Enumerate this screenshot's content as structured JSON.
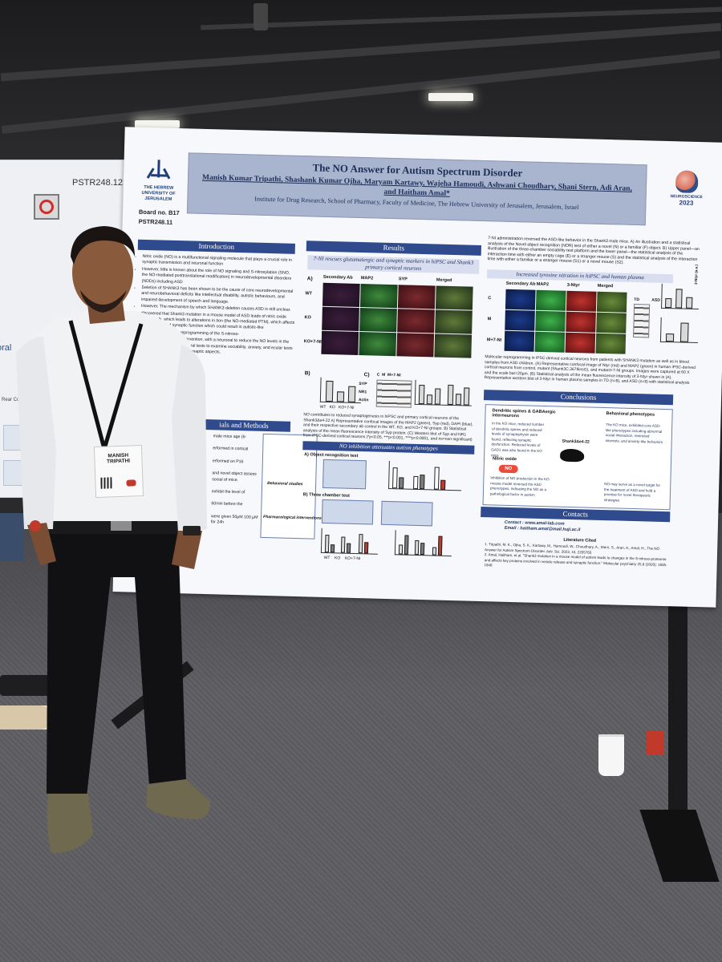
{
  "left_poster": {
    "id": "PSTR248.12",
    "heading_fragment": "oral",
    "subtitle_fragment": "Rear Conditioning: (Contextual Learning and Fear Lea"
  },
  "poster": {
    "title": "The NO Answer for Autism Spectrum Disorder",
    "authors": "Manish Kumar Tripathi, Shashank Kumar Ojha, Maryam Kartawy, Wajeha Hamoudi, Ashwani Choudhary, Shani Stern, Adi Aran, and Haitham Amal*",
    "affiliation": "Institute for Drug Research, School of Pharmacy, Faculty of Medicine, The Hebrew University of Jerusalem, Jerusalem, Israel",
    "university_logo": "THE HEBREW UNIVERSITY OF JERUSALEM",
    "board": "Board no. B17",
    "poster_code": "PSTR248.11",
    "conference_logo": "NEUROSCIENCE",
    "conference_year": "2023",
    "sections": {
      "introduction": "Introduction",
      "results": "Results",
      "materials": "ials and Methods",
      "conclusions": "Conclusions",
      "contacts": "Contacts",
      "literature": "Literature Cited"
    },
    "intro_points": [
      "Nitric oxide (NO) is a multifunctional signaling molecule that plays a crucial role in synaptic transmission and neuronal function",
      "However, little is known about the role of NO signaling and S-nitrosylation (SNO, the NO-mediated posttranslational modification) in neurodevelopmental disorders (NDDs) including ASD",
      "Deletion of SHANK3 has been shown to be the cause of core neurodevelopmental and neurobehavioral deficits like intellectual disability, autistic behaviours, and impaired development of speech and language.",
      "However, The mechanism by which SHANK3 deletion causes ASD is still unclear.",
      "discovered that Shank3 mutation in a mouse model of ASD leads of nitric oxide (NO) levels, which leads to alterations in tion (the NO-mediated PTM), which affects key proteins and synaptic function which could result in autistic-like",
      "nk3 mutation led to a reprogramming of the S-nitroso-",
      "ed a pharmacological intervention, with a neuronal to reduce the NO levels in the brain. This was of behavioural tests to examine sociability, anxiety, and ecular tests to examine molecular and synaptic aspects."
    ],
    "methods_fragments": [
      "male mice age (6-",
      "erformed in cortical",
      "erformed on P16",
      "and novel object assess social of mice.",
      "exhibit the level of",
      "60min before the",
      "were given 50µM 100 µM for 24h"
    ],
    "methods_figure_labels": {
      "behavioral": "Behavioral studies",
      "pharmacological": "Pharmacological interventions"
    },
    "panel_a": {
      "heading": "7-NI rescues glutamatergic and synaptic markers in hiPSC and Shank3 primary cortical neurons",
      "label": "A)",
      "columns": [
        "Secondary Ab",
        "MAP2",
        "SYP",
        "Merged"
      ],
      "rows": [
        "WT",
        "KO",
        "KO+7-NI"
      ],
      "b_label": "B)",
      "c_label": "C)",
      "blot_columns": [
        "C",
        "M",
        "M+7-NI"
      ],
      "blot_rows": [
        "SYP",
        "NR1",
        "Actin"
      ],
      "bar_axis_labels": [
        "WT",
        "KO",
        "KO+7-NI"
      ],
      "caption": "NO contributes to reduced synaptogenesis in hiPSC and primary cortical neurons of the Shank3Δe4-22 A) Representative confocal images of the MAP2 (green), Syp (red), DAPI (blue), and their respective secondary ab control in the WT, KO, and KO+7-NI groups. B) Statistical analysis of the mean fluorescence intensity of Syp protein. (C) Western blot of Syp and NR1 from iPSC-derived cortical neurons (*p<0.05, ***p<0.001, ****p<0.0001, and ns=non-significant)"
    },
    "panel_b": {
      "heading": "NO inhibition attenuates autism phenotypes",
      "a_label": "A) Object recognition test",
      "b_label": "B) Three chamber test",
      "group_labels": [
        "WT",
        "KO",
        "KO+7-NI"
      ]
    },
    "panel_c": {
      "text": "7-NI administration reversed the ASD-like behavior in the Shank3 male mice. A) An illustration and a statistical analysis of the Novel object recognition (NOR) test of either a novel (N) or a familiar (F) object. B) Upper panel—an illustration of the three-chamber sociability test platform and the lower panel—the statistical analysis of the interaction time with either an empty cage (E) or a stranger mouse (S) and the statistical analysis of the interaction time with either a familiar or a stranger mouse (S1) or a novel mouse (S2).",
      "heading": "Increased tyrosine nitration in hiPSC and human plasma",
      "columns": [
        "Secondary Ab",
        "MAP2",
        "3-Ntyr",
        "Merged"
      ],
      "rows": [
        "C",
        "M",
        "M+7-NI"
      ],
      "side_labels": [
        "TD",
        "ASD",
        "3-Ntyr (a.u.)"
      ],
      "caption": "Molecular reprogramming in iPSC-derived cortical neurons from patients with SHANK3 mutation as well as in blood samples from ASD children. (A) Representative confocal image of Ntyr (red) and MAP2 (green) in human iPSC-derived cortical neurons from control, mutant (Shank3C.3679insG), and mutant+7-NI groups. Images were captured at 60 X and the scale bar=20µm. (B) Statistical analysis of the mean fluorescence intensity of 3-Ntyr shown in (A). Representative western blot of 3-Ntyr in human plasma samples in TD (n=8), and ASD (n=8) with statistical analysis"
    },
    "conclusions": {
      "dendritic_title": "Dendritic spines & GABAergic interneurons",
      "dendritic_text": "In the KO mice, reduced number of dendritic spines and reduced levels of synaptophysin were found, reflecting synaptic dysfunction. Reduced levels of GAD1 was also found in the KO mice",
      "behavioral_title": "Behavioral phenotypes",
      "behavioral_text": "The KO mice, exhibited core ASD- like phenotypes including abnormal social interaction, restricted interests, and anxiety-like behaviors",
      "center_label": "Shank3Δe4-22",
      "nitric_title": "Nitric oxide",
      "no_badge": "NO",
      "nitric_text": "Inhibition of NO production in the KO mouse model reversed the ASD phenotypes, indicating the NO  as a pathological factor in autism",
      "target_text": "NO may serve as a novel target for the treatment of ASD and hold a promise for novel therapeutic strategies"
    },
    "contacts": {
      "contact": "Contact : www.amal-lab.com",
      "email": "Email : haitham.amal@mail.huji.ac.il"
    },
    "literature": [
      "1. Tripathi, M. K., Ojha, S. K., Kartawy, M., Hamoudi, W., Choudhary, A., Stern, S., Aran, A., Amal, H., The NO Answer for Autism Spectrum Disorder. Adv. Sci. 2023, 10, 2205783",
      "2. Amal, Haitham, et al. \"Shank3 mutation in a mouse model of autism leads to changes in the S-nitroso-proteome and affects key proteins involved in vesicle release and synaptic function.\" Molecular psychiatry 25.8 (2020): 1835-1848"
    ]
  },
  "badge": {
    "first_name": "MANISH",
    "last_name": "TRIPATHI"
  },
  "colors": {
    "poster_header": "#2f4b8d",
    "title_banner": "#a9b5cf",
    "shirt": "#f1f2f4",
    "floor": "#5e5e62"
  }
}
